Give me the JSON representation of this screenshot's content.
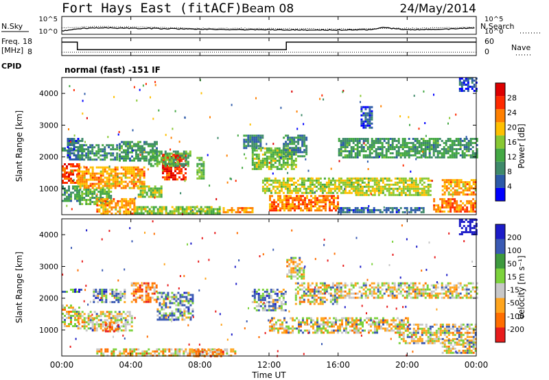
{
  "header": {
    "station": "Fort Hays East (fitACF)",
    "beam": "Beam 08",
    "date": "24/May/2014"
  },
  "noise_panel": {
    "left_label": "N.Sky",
    "right_label": "N.Search",
    "left_ticks": [
      "10^5",
      "10^0"
    ],
    "right_ticks": [
      "10^5",
      "10^0"
    ]
  },
  "freq_panel": {
    "left_label_1": "Freq.",
    "left_label_2": "[MHz]",
    "left_ticks": [
      "18",
      "8"
    ],
    "right_label": "Nave",
    "right_ticks": [
      "60",
      "0"
    ]
  },
  "cpid_panel": {
    "label": "CPID",
    "text": "normal (fast) -151 IF"
  },
  "power_panel": {
    "ylabel": "Slant Range [km]",
    "yticks": [
      "4000",
      "3000",
      "2000",
      "1000"
    ],
    "colorbar_label": "Power [dB]",
    "colorbar_ticks": [
      "28",
      "24",
      "20",
      "16",
      "12",
      "8",
      "4"
    ]
  },
  "velocity_panel": {
    "ylabel": "Slant Range [km]",
    "yticks": [
      "4000",
      "3000",
      "2000",
      "1000"
    ],
    "colorbar_label": "Velocity [m s⁻¹]",
    "colorbar_ticks": [
      "200",
      "100",
      "50",
      "15",
      "-15",
      "-50",
      "-100",
      "-200"
    ]
  },
  "x_axis": {
    "ticks": [
      "00:00",
      "04:00",
      "08:00",
      "12:00",
      "16:00",
      "20:00",
      "00:00"
    ],
    "label": "Time UT"
  },
  "colors": {
    "power": [
      "#0000ff",
      "#2c5aa8",
      "#3e8a6a",
      "#44a844",
      "#88c833",
      "#ffc000",
      "#ff8000",
      "#ff2a00",
      "#dd0000"
    ],
    "velocity": [
      "#1c1cc8",
      "#3a5ab4",
      "#3e9a3e",
      "#7cd23c",
      "#c8c8c8",
      "#ffa51e",
      "#ff6e00",
      "#e81c1c"
    ]
  },
  "chart_data": [
    {
      "type": "line",
      "title": "N.Sky / N.Search",
      "x_range_hours": [
        0,
        24
      ],
      "series": [
        {
          "name": "N.Sky",
          "x": [
            0,
            1,
            2,
            4,
            6,
            8,
            10,
            12,
            14,
            16,
            18,
            18.5,
            20,
            22,
            24
          ],
          "log10": [
            0.9,
            1.6,
            1.8,
            1.7,
            1.6,
            1.4,
            1.3,
            1.3,
            1.2,
            1.2,
            1.3,
            1.9,
            1.3,
            1.4,
            1.8
          ]
        },
        {
          "name": "N.Search",
          "x": [
            0,
            2,
            4,
            8,
            12,
            16,
            20,
            24
          ],
          "log10": [
            1.8,
            2.2,
            2.1,
            1.7,
            1.6,
            1.5,
            1.7,
            2.0
          ]
        }
      ],
      "ylim_log10": [
        0,
        5
      ]
    },
    {
      "type": "line",
      "title": "Freq. / Nave",
      "x_range_hours": [
        0,
        24
      ],
      "series": [
        {
          "name": "Freq. [MHz]",
          "x": [
            0,
            0.9,
            0.9,
            13.0,
            13.0,
            24
          ],
          "y": [
            16,
            16,
            11,
            11,
            16,
            16
          ]
        },
        {
          "name": "Nave",
          "x": [
            0,
            24
          ],
          "y": [
            8,
            8
          ]
        }
      ],
      "ylim_freq": [
        8,
        18
      ],
      "ylim_nave": [
        0,
        60
      ]
    },
    {
      "type": "heatmap",
      "title": "Power [dB]",
      "x_range_hours": [
        0,
        24
      ],
      "ylim": [
        180,
        4500
      ],
      "zlim": [
        0,
        30
      ],
      "blobs": [
        {
          "t0": 0.0,
          "t1": 1.0,
          "r0": 1200,
          "r1": 1800,
          "v": 24
        },
        {
          "t0": 0.0,
          "t1": 1.0,
          "r0": 600,
          "r1": 1100,
          "v": 10
        },
        {
          "t0": 0.0,
          "t1": 1.1,
          "r0": 2200,
          "r1": 2300,
          "v": 8
        },
        {
          "t0": 0.3,
          "t1": 1.2,
          "r0": 1900,
          "r1": 2600,
          "v": 6
        },
        {
          "t0": 0.9,
          "t1": 4.8,
          "r0": 1000,
          "r1": 1700,
          "v": 20
        },
        {
          "t0": 1.0,
          "t1": 3.2,
          "r0": 1900,
          "r1": 2400,
          "v": 9
        },
        {
          "t0": 1.0,
          "t1": 2.8,
          "r0": 500,
          "r1": 1000,
          "v": 12
        },
        {
          "t0": 2.0,
          "t1": 4.2,
          "r0": 200,
          "r1": 700,
          "v": 20
        },
        {
          "t0": 3.3,
          "t1": 5.5,
          "r0": 1900,
          "r1": 2500,
          "v": 10
        },
        {
          "t0": 4.4,
          "t1": 5.8,
          "r0": 750,
          "r1": 1100,
          "v": 14
        },
        {
          "t0": 5.8,
          "t1": 7.2,
          "r0": 1300,
          "r1": 2100,
          "v": 26
        },
        {
          "t0": 5.0,
          "t1": 7.5,
          "r0": 1700,
          "r1": 2200,
          "v": 12
        },
        {
          "t0": 4.2,
          "t1": 9.2,
          "r0": 250,
          "r1": 450,
          "v": 14
        },
        {
          "t0": 7.8,
          "t1": 8.2,
          "r0": 1300,
          "r1": 2000,
          "v": 12
        },
        {
          "t0": 9.2,
          "t1": 11.0,
          "r0": 250,
          "r1": 420,
          "v": 20
        },
        {
          "t0": 10.5,
          "t1": 11.6,
          "r0": 2300,
          "r1": 2700,
          "v": 8
        },
        {
          "t0": 11.0,
          "t1": 13.6,
          "r0": 1600,
          "r1": 2300,
          "v": 14
        },
        {
          "t0": 12.0,
          "t1": 16.0,
          "r0": 300,
          "r1": 800,
          "v": 22
        },
        {
          "t0": 11.6,
          "t1": 17.2,
          "r0": 850,
          "r1": 1350,
          "v": 16
        },
        {
          "t0": 12.8,
          "t1": 14.2,
          "r0": 2000,
          "r1": 2700,
          "v": 8
        },
        {
          "t0": 16.0,
          "t1": 24.0,
          "r0": 2000,
          "r1": 2600,
          "v": 10
        },
        {
          "t0": 17.0,
          "t1": 21.3,
          "r0": 800,
          "r1": 1350,
          "v": 16
        },
        {
          "t0": 22.0,
          "t1": 24.0,
          "r0": 800,
          "r1": 1300,
          "v": 20
        },
        {
          "t0": 21.5,
          "t1": 24.0,
          "r0": 300,
          "r1": 700,
          "v": 22
        },
        {
          "t0": 16.0,
          "t1": 21.0,
          "r0": 280,
          "r1": 420,
          "v": 6
        },
        {
          "t0": 17.3,
          "t1": 18.0,
          "r0": 2900,
          "r1": 3600,
          "v": 4
        },
        {
          "t0": 23.0,
          "t1": 24.0,
          "r0": 4100,
          "r1": 4500,
          "v": 4
        }
      ]
    },
    {
      "type": "heatmap",
      "title": "Velocity [m s⁻¹]",
      "x_range_hours": [
        0,
        24
      ],
      "ylim": [
        180,
        4500
      ],
      "zlim": [
        -250,
        250
      ],
      "blobs": [
        {
          "t0": 0.0,
          "t1": 1.0,
          "r0": 1100,
          "r1": 1800,
          "v": 0
        },
        {
          "t0": 0.0,
          "t1": 1.1,
          "r0": 2200,
          "r1": 2300,
          "v": 70
        },
        {
          "t0": 0.9,
          "t1": 4.0,
          "r0": 1000,
          "r1": 1600,
          "v": 0
        },
        {
          "t0": 2.5,
          "t1": 3.3,
          "r0": 950,
          "r1": 1250,
          "v": -60
        },
        {
          "t0": 1.8,
          "t1": 3.6,
          "r0": 1900,
          "r1": 2300,
          "v": 40
        },
        {
          "t0": 4.0,
          "t1": 5.5,
          "r0": 1900,
          "r1": 2500,
          "v": -60
        },
        {
          "t0": 5.5,
          "t1": 7.6,
          "r0": 1300,
          "r1": 2200,
          "v": 40
        },
        {
          "t0": 2.0,
          "t1": 10.0,
          "r0": 180,
          "r1": 420,
          "v": -20
        },
        {
          "t0": 7.5,
          "t1": 9.5,
          "r0": 180,
          "r1": 400,
          "v": -55
        },
        {
          "t0": 11.0,
          "t1": 13.0,
          "r0": 1600,
          "r1": 2300,
          "v": 40
        },
        {
          "t0": 12.0,
          "t1": 20.0,
          "r0": 900,
          "r1": 1400,
          "v": 0
        },
        {
          "t0": 16.0,
          "t1": 24.0,
          "r0": 2000,
          "r1": 2500,
          "v": 0
        },
        {
          "t0": 19.5,
          "t1": 24.0,
          "r0": 600,
          "r1": 1200,
          "v": 0
        },
        {
          "t0": 22.0,
          "t1": 24.0,
          "r0": 300,
          "r1": 700,
          "v": 0
        },
        {
          "t0": 13.5,
          "t1": 16.0,
          "r0": 1800,
          "r1": 2500,
          "v": 0
        },
        {
          "t0": 13.0,
          "t1": 14.0,
          "r0": 2600,
          "r1": 3300,
          "v": 0
        },
        {
          "t0": 23.0,
          "t1": 24.0,
          "r0": 4000,
          "r1": 4500,
          "v": 150
        }
      ]
    }
  ]
}
